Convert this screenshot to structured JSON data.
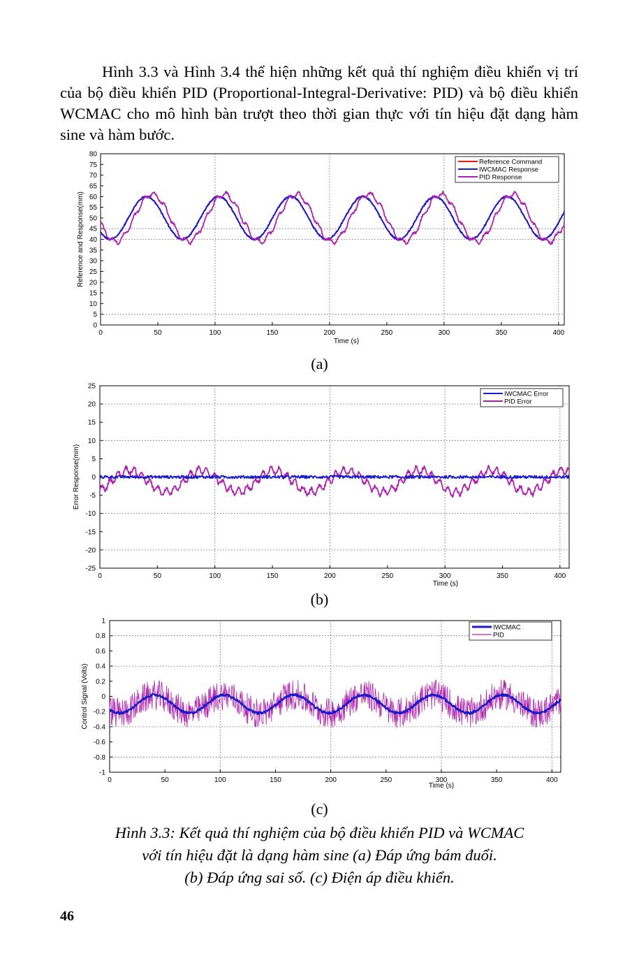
{
  "paragraph": "Hình 3.3 và Hình 3.4 thể hiện những kết quả thí nghiệm điều khiển vị trí của bộ điều khiển PID (Proportional-Integral-Derivative: PID) và bộ điều khiển WCMAC cho mô hình bàn trượt theo thời gian thực với tín hiệu đặt dạng hàm sine và hàm bước.",
  "panel_labels": [
    "(a)",
    "(b)",
    "(c)"
  ],
  "caption_lines": [
    "Hình 3.3: Kết quả thí nghiệm của bộ điều khiển PID và WCMAC",
    "với tín hiệu đặt là dạng hàm sine (a) Đáp ứng bám đuổi.",
    "(b) Đáp ứng sai số. (c) Điện áp điều khiển."
  ],
  "page_number": "46",
  "colors": {
    "reference": "#e8141a",
    "wcmac": "#1a1ac8",
    "pid": "#b020b0",
    "grid": "#555555"
  },
  "chart_data": [
    {
      "type": "line",
      "panel": "a",
      "xlabel": "Time (s)",
      "ylabel": "Reference and Response(mm)",
      "xlim": [
        0,
        405
      ],
      "ylim": [
        0,
        80
      ],
      "x_ticks": [
        0,
        50,
        100,
        150,
        200,
        250,
        300,
        350,
        400
      ],
      "y_ticks": [
        0,
        5,
        10,
        15,
        20,
        25,
        30,
        35,
        40,
        45,
        50,
        55,
        60,
        65,
        70,
        75,
        80
      ],
      "legend": [
        "Reference Command",
        "IWCMAC Response",
        "PID Response"
      ],
      "legend_position": "top-right",
      "signal": {
        "offset": 50,
        "amplitude": 10,
        "period": 63,
        "phase_peak_time": 40,
        "pid_lag": 5
      },
      "series": [
        {
          "name": "Reference Command",
          "color": "#e8141a",
          "model": "sine",
          "offset": 50,
          "amplitude": 10
        },
        {
          "name": "IWCMAC Response",
          "color": "#1a1ac8",
          "model": "sine",
          "offset": 50,
          "amplitude": 10
        },
        {
          "name": "PID Response",
          "color": "#b020b0",
          "model": "lagged-sine",
          "offset": 50,
          "amplitude": 10
        }
      ]
    },
    {
      "type": "line",
      "panel": "b",
      "xlabel": "Time (s)",
      "ylabel": "Error Response(mm)",
      "xlim": [
        0,
        408
      ],
      "ylim": [
        -25,
        25
      ],
      "x_ticks": [
        0,
        50,
        100,
        150,
        200,
        250,
        300,
        350,
        400
      ],
      "y_ticks": [
        -25,
        -20,
        -15,
        -10,
        -5,
        0,
        5,
        10,
        15,
        20,
        25
      ],
      "legend": [
        "IWCMAC Error",
        "PID Error"
      ],
      "legend_position": "top-right",
      "series": [
        {
          "name": "IWCMAC Error",
          "color": "#1a1ac8",
          "amplitude": 0.4
        },
        {
          "name": "PID Error",
          "color": "#b020b0",
          "amplitude": 3.5
        }
      ]
    },
    {
      "type": "line",
      "panel": "c",
      "xlabel": "Time (s)",
      "ylabel": "Control Signal (Volts)",
      "xlim": [
        0,
        408
      ],
      "ylim": [
        -1,
        1
      ],
      "x_ticks": [
        0,
        50,
        100,
        150,
        200,
        250,
        300,
        350,
        400
      ],
      "y_tick_labels": [
        "1",
        "0.8",
        "0.6",
        "0.4",
        "0.2",
        "0",
        "-0.2",
        "-0.4",
        "-0.6",
        "-0.8",
        "-1"
      ],
      "legend": [
        "IWCMAC",
        "PID"
      ],
      "legend_position": "top-right",
      "series": [
        {
          "name": "IWCMAC",
          "color": "#1a1ac8",
          "offset": -0.1,
          "amplitude": 0.12
        },
        {
          "name": "PID",
          "color": "#b020b0",
          "offset": -0.1,
          "amplitude": 0.12,
          "noise": 0.2
        }
      ]
    }
  ]
}
